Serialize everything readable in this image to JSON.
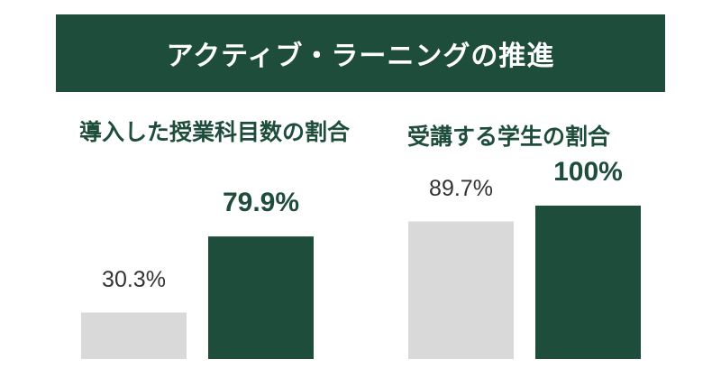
{
  "header": {
    "title": "アクティブ・ラーニングの推進"
  },
  "chart_data": [
    {
      "type": "bar",
      "title": "導入した授業科目数の割合",
      "categories": [
        null,
        null
      ],
      "values": [
        30.3,
        79.9
      ],
      "value_labels": [
        "30.3%",
        "79.9%"
      ],
      "colors": [
        "#d9d9d9",
        "#1f4d3b"
      ],
      "ylim": [
        0,
        100
      ]
    },
    {
      "type": "bar",
      "title": "受講する学生の割合",
      "categories": [
        null,
        null
      ],
      "values": [
        89.7,
        100
      ],
      "value_labels": [
        "89.7%",
        "100%"
      ],
      "colors": [
        "#d9d9d9",
        "#1f4d3b"
      ],
      "ylim": [
        0,
        100
      ]
    }
  ]
}
